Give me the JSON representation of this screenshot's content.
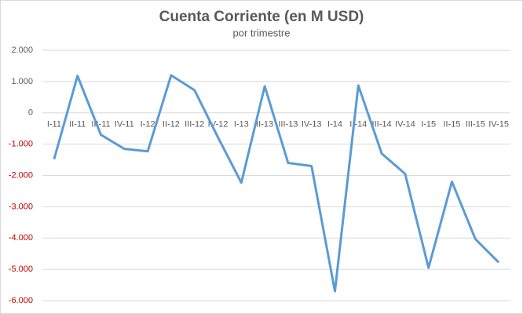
{
  "chart_data": {
    "type": "line",
    "title": "Cuenta Corriente (en M USD)",
    "subtitle": "por trimestre",
    "categories": [
      "I-11",
      "II-11",
      "III-11",
      "IV-11",
      "I-12",
      "II-12",
      "III-12",
      "IV-12",
      "I-13",
      "II-13",
      "III-13",
      "IV-13",
      "I-14",
      "II-14",
      "III-14",
      "IV-14",
      "I-15",
      "II-15",
      "III-15",
      "IV-15"
    ],
    "series": [
      {
        "name": "Cuenta Corriente",
        "color": "#5b9bd5",
        "values": [
          -1480,
          1180,
          -700,
          -1150,
          -1230,
          1200,
          725,
          -780,
          -2230,
          850,
          -1600,
          -1700,
          -5700,
          875,
          -1300,
          -1950,
          -4950,
          -2200,
          -4030,
          -4780
        ]
      }
    ],
    "ylim": [
      -6000,
      2000
    ],
    "yticks": [
      {
        "value": -6000,
        "label": "-6.000"
      },
      {
        "value": -5000,
        "label": "-5.000"
      },
      {
        "value": -4000,
        "label": "-4.000"
      },
      {
        "value": -3000,
        "label": "-3.000"
      },
      {
        "value": -2000,
        "label": "-2.000"
      },
      {
        "value": -1000,
        "label": "-1.000"
      },
      0,
      {
        "value": 1000,
        "label": "1.000"
      },
      {
        "value": 2000,
        "label": "2.000"
      }
    ],
    "grid": true,
    "negative_tick_color": "#c00000"
  }
}
